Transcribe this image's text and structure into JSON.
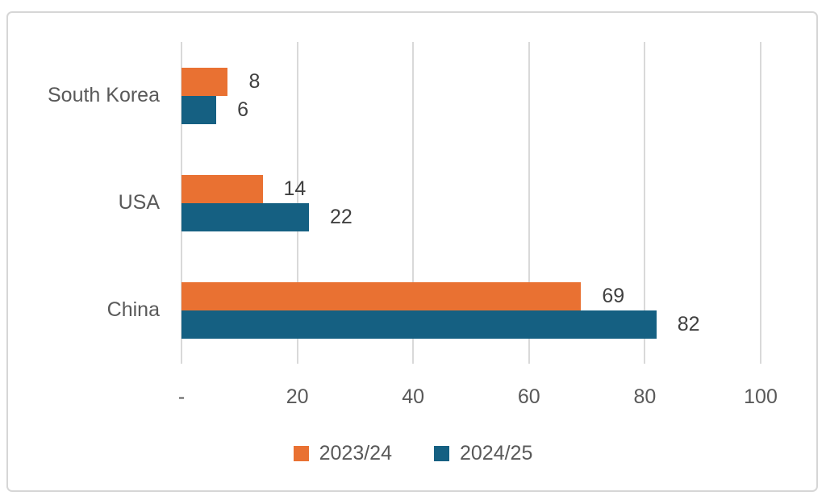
{
  "chart_data": {
    "type": "bar",
    "orientation": "horizontal",
    "title": "",
    "categories": [
      "South Korea",
      "USA",
      "China"
    ],
    "series": [
      {
        "name": "2023/24",
        "color": "#E97132",
        "values": [
          8,
          14,
          69
        ]
      },
      {
        "name": "2024/25",
        "color": "#156082",
        "values": [
          6,
          22,
          82
        ]
      }
    ],
    "xlim": [
      0,
      100
    ],
    "x_ticks": [
      {
        "value": 0,
        "label": "-"
      },
      {
        "value": 20,
        "label": "20"
      },
      {
        "value": 40,
        "label": "40"
      },
      {
        "value": 60,
        "label": "60"
      },
      {
        "value": 80,
        "label": "80"
      },
      {
        "value": 100,
        "label": "100"
      }
    ],
    "grid": true,
    "data_labels": true,
    "legend_position": "bottom",
    "colors": {
      "gridline": "#D9D9D9",
      "axis_text": "#595959",
      "value_label_text": "#404040",
      "frame_border": "#D6D6D6",
      "background": "#FFFFFF"
    }
  }
}
